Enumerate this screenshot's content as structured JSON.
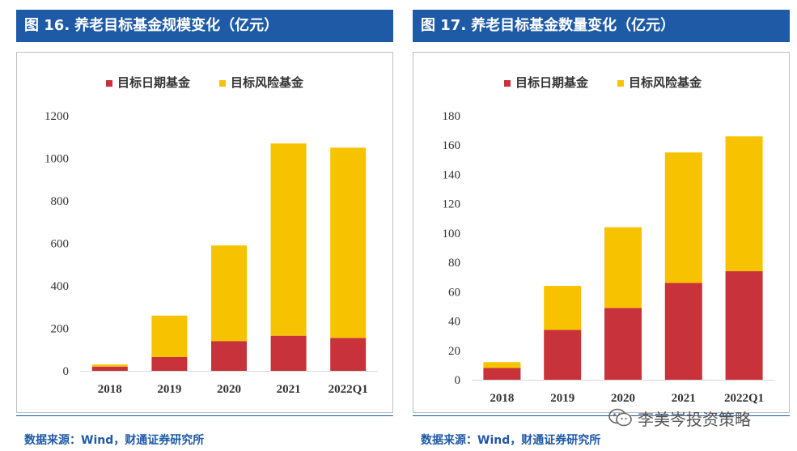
{
  "colors": {
    "header_bg": "#1f5aa6",
    "target_date": "#c8323a",
    "target_risk": "#f7c300",
    "source_text": "#1f5aa6"
  },
  "figures": [
    {
      "title_num": "图 16.",
      "title_text": "养老目标基金规模变化（亿元）",
      "source": "数据来源：Wind，财通证券研究所"
    },
    {
      "title_num": "图 17.",
      "title_text": "养老目标基金数量变化（亿元）",
      "source": "数据来源：Wind，财通证券研究所"
    }
  ],
  "watermark": {
    "text": "李美岑投资策略",
    "icon": "wechat-icon"
  },
  "chart_data": [
    {
      "type": "bar",
      "stacked": true,
      "title": "养老目标基金规模变化（亿元）",
      "categories": [
        "2018",
        "2019",
        "2020",
        "2021",
        "2022Q1"
      ],
      "series": [
        {
          "name": "目标日期基金",
          "values": [
            20,
            65,
            140,
            165,
            155
          ],
          "color": "#c8323a"
        },
        {
          "name": "目标风险基金",
          "values": [
            10,
            195,
            450,
            905,
            895
          ],
          "color": "#f7c300"
        }
      ],
      "ylim": [
        0,
        1200
      ],
      "yticks": [
        0,
        200,
        400,
        600,
        800,
        1000,
        1200
      ],
      "legend": "top-center",
      "grid": false
    },
    {
      "type": "bar",
      "stacked": true,
      "title": "养老目标基金数量变化（亿元）",
      "categories": [
        "2018",
        "2019",
        "2020",
        "2021",
        "2022Q1"
      ],
      "series": [
        {
          "name": "目标日期基金",
          "values": [
            8,
            34,
            49,
            66,
            74
          ],
          "color": "#c8323a"
        },
        {
          "name": "目标风险基金",
          "values": [
            4,
            30,
            55,
            89,
            92
          ],
          "color": "#f7c300"
        }
      ],
      "ylim": [
        0,
        180
      ],
      "yticks": [
        0,
        20,
        40,
        60,
        80,
        100,
        120,
        140,
        160,
        180
      ],
      "legend": "top-center",
      "grid": false
    }
  ]
}
